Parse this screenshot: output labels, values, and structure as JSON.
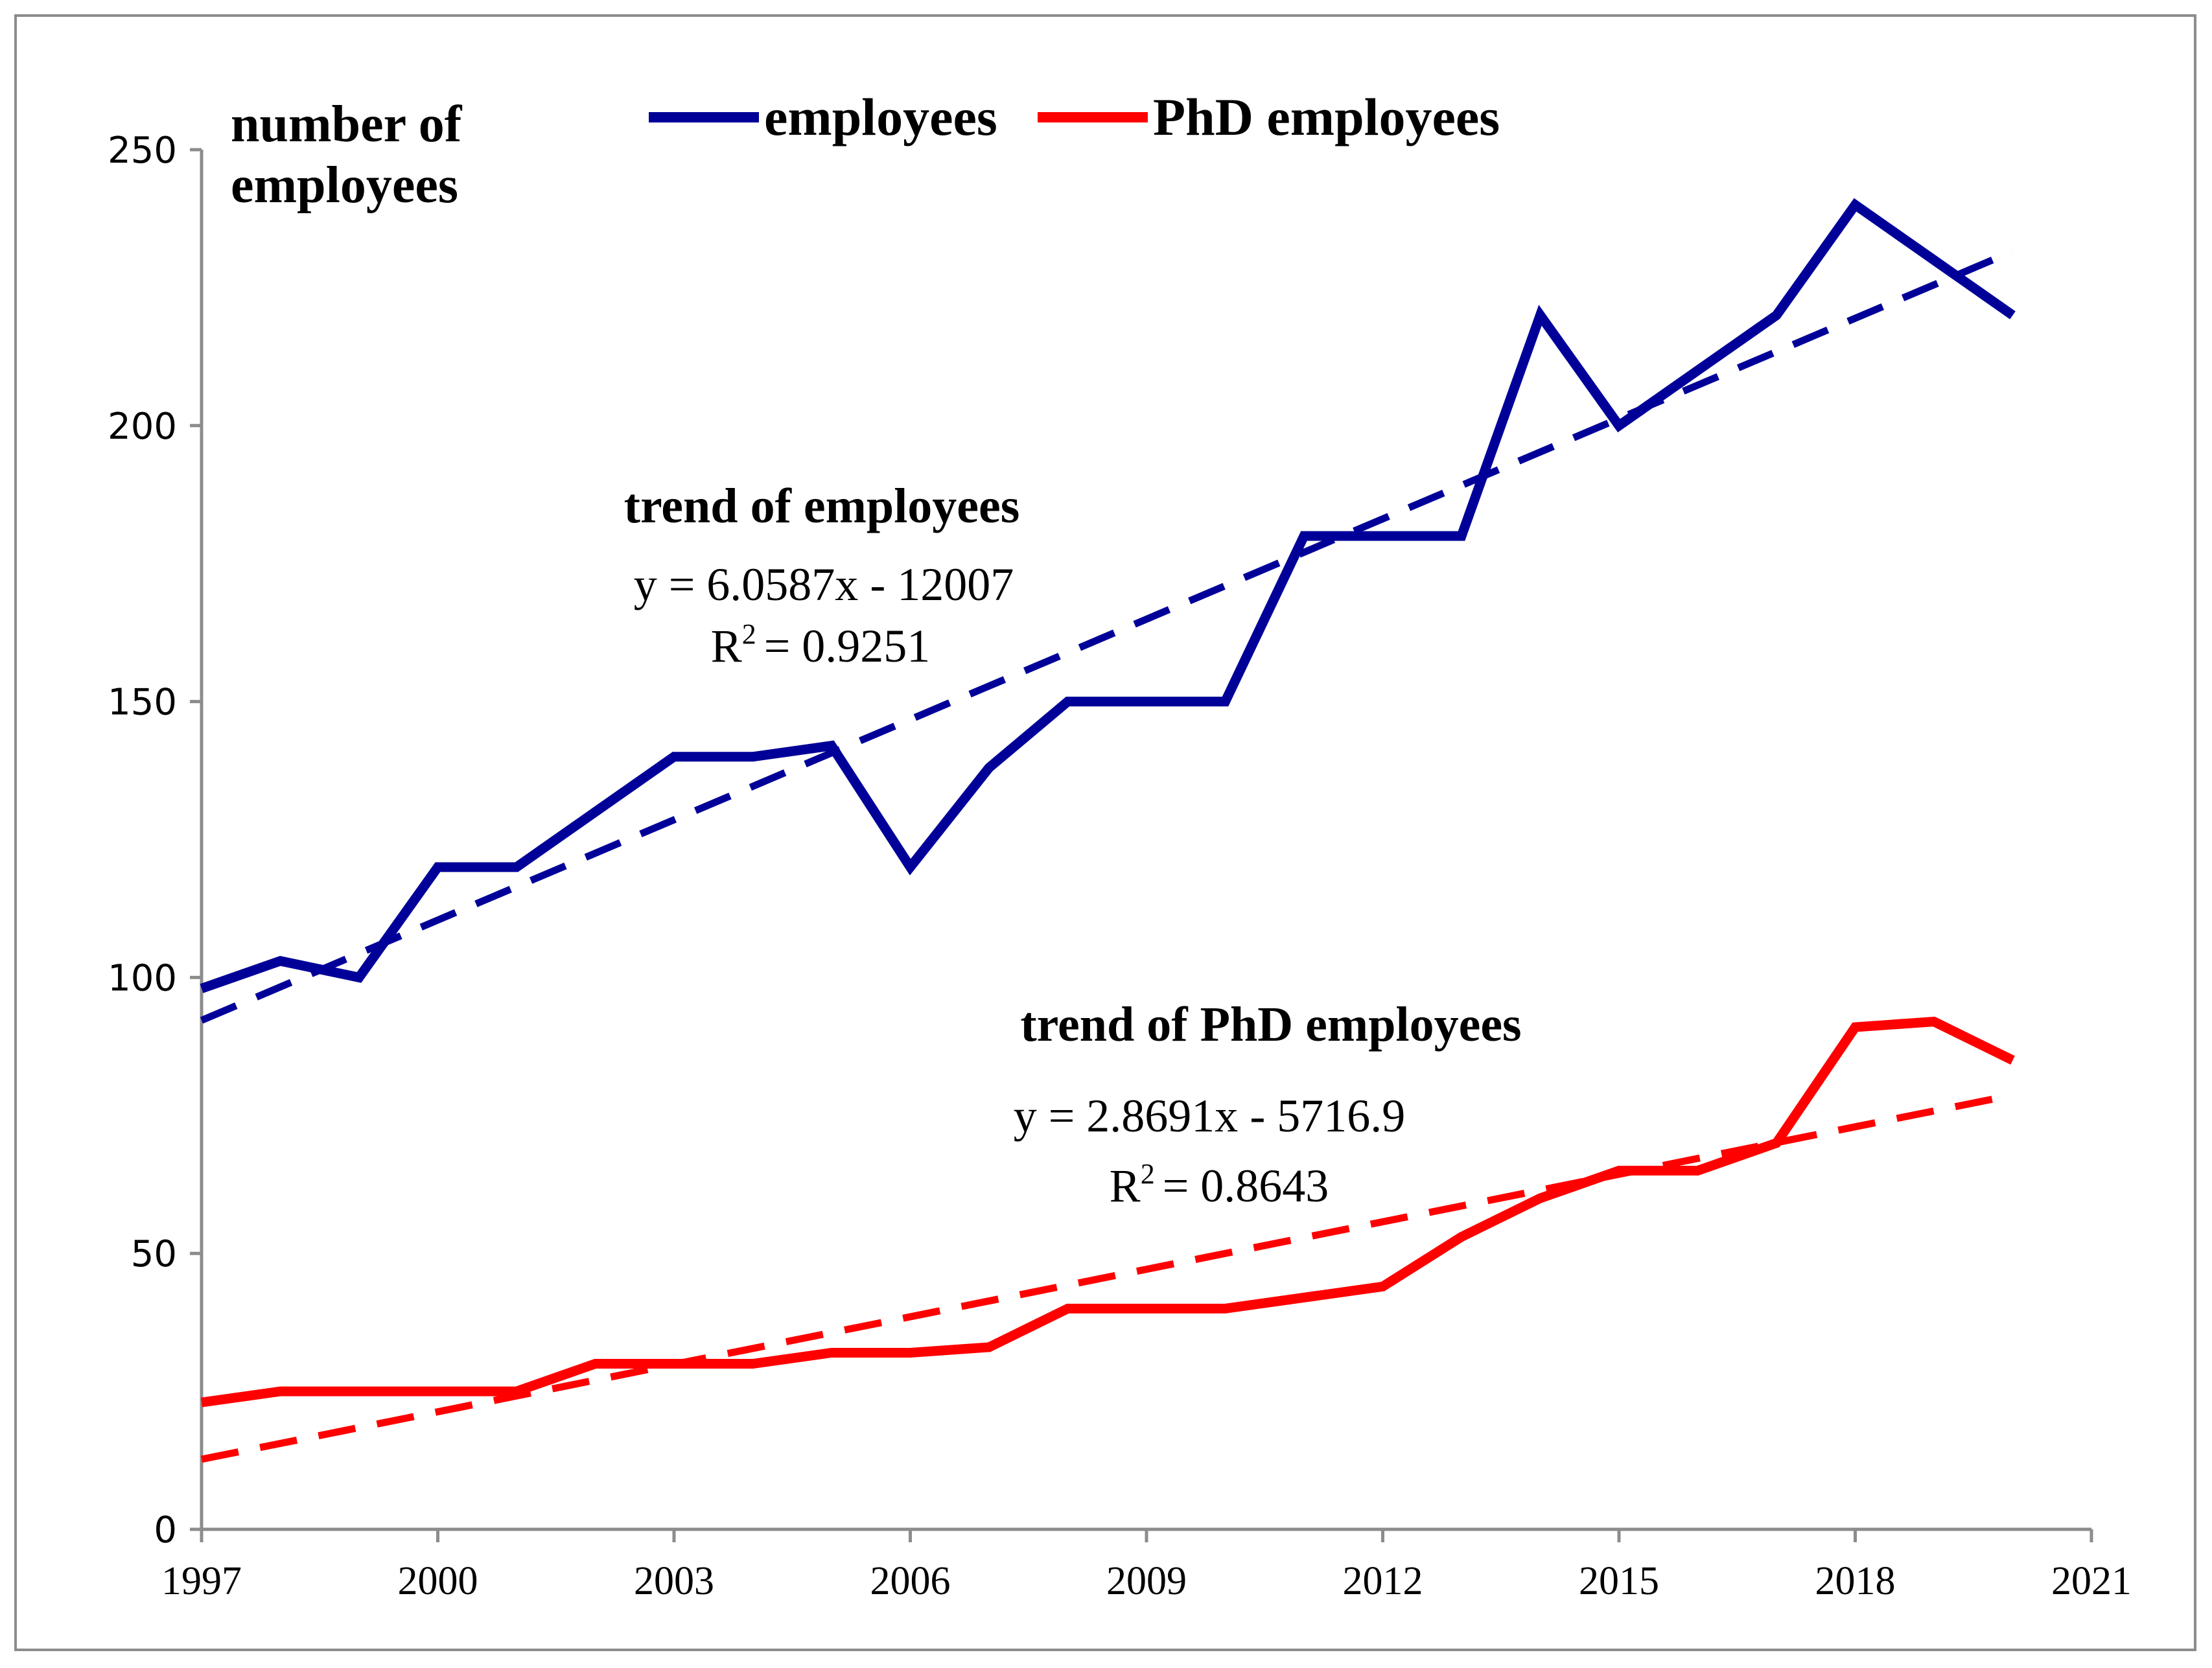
{
  "chart_data": {
    "type": "line",
    "ylabel_lines": [
      "number of",
      "employees"
    ],
    "xlabel": "",
    "ylim": [
      0,
      250
    ],
    "xlim": [
      1997,
      2021
    ],
    "y_ticks": [
      0,
      50,
      100,
      150,
      200,
      250
    ],
    "x_ticks": [
      1997,
      2000,
      2003,
      2006,
      2009,
      2012,
      2015,
      2018,
      2021
    ],
    "grid": false,
    "legend_position": "top",
    "x": [
      1997,
      1998,
      1999,
      2000,
      2001,
      2002,
      2003,
      2004,
      2005,
      2006,
      2007,
      2008,
      2009,
      2010,
      2011,
      2012,
      2013,
      2014,
      2015,
      2016,
      2017,
      2018,
      2019,
      2020
    ],
    "series": [
      {
        "name": "employees",
        "color": "#000099",
        "values": [
          98,
          103,
          100,
          120,
          120,
          130,
          140,
          140,
          142,
          120,
          138,
          150,
          150,
          150,
          180,
          180,
          180,
          220,
          200,
          210,
          220,
          240,
          230,
          220
        ]
      },
      {
        "name": "PhD employees",
        "color": "#ff0000",
        "values": [
          23,
          25,
          25,
          25,
          25,
          30,
          30,
          30,
          32,
          32,
          33,
          40,
          40,
          40,
          42,
          44,
          53,
          60,
          65,
          65,
          70,
          91,
          92,
          85
        ]
      }
    ],
    "trendlines": [
      {
        "series": "employees",
        "slope": 6.0587,
        "intercept": -12007,
        "x_range": [
          1997,
          2020
        ],
        "color": "#000099",
        "title": "trend of employees",
        "equation_prefix": "y = 6.0587x",
        "equation_suffix": "- 12007",
        "r2_label": "R",
        "r2_exp": "2",
        "r2_value": "= 0.9251"
      },
      {
        "series": "PhD employees",
        "slope": 2.8691,
        "intercept": -5716.9,
        "x_range": [
          1997,
          2020
        ],
        "color": "#ff0000",
        "title": "trend of PhD employees",
        "equation_prefix": "y = 2.8691x",
        "equation_suffix": "- 5716.9",
        "r2_label": "R",
        "r2_exp": "2",
        "r2_value": "= 0.8643"
      }
    ]
  }
}
